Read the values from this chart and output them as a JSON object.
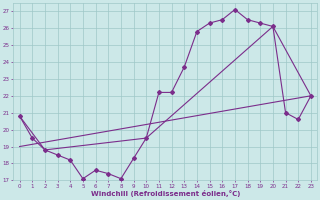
{
  "line1_x": [
    0,
    1,
    2,
    3,
    4,
    5,
    6,
    7,
    8,
    9,
    10,
    11,
    12,
    13,
    14,
    15,
    16,
    17,
    18,
    19,
    20,
    21,
    22,
    23
  ],
  "line1_y": [
    20.8,
    19.5,
    18.8,
    18.5,
    18.2,
    17.1,
    17.6,
    17.4,
    17.1,
    18.3,
    19.5,
    22.2,
    22.2,
    23.7,
    25.8,
    26.3,
    26.5,
    27.1,
    26.5,
    26.3,
    26.1,
    21.0,
    20.6,
    22.0
  ],
  "line2_x": [
    0,
    2,
    10,
    20,
    23
  ],
  "line2_y": [
    20.8,
    18.8,
    19.5,
    26.1,
    22.0
  ],
  "line3_x": [
    0,
    23
  ],
  "line3_y": [
    19.0,
    22.0
  ],
  "color": "#7b2d8b",
  "bg_color": "#cce8e8",
  "grid_color": "#9fc8c8",
  "xlabel": "Windchill (Refroidissement éolien,°C)",
  "ylim": [
    17,
    27.5
  ],
  "xlim": [
    -0.5,
    23.5
  ],
  "yticks": [
    17,
    18,
    19,
    20,
    21,
    22,
    23,
    24,
    25,
    26,
    27
  ],
  "xticks": [
    0,
    1,
    2,
    3,
    4,
    5,
    6,
    7,
    8,
    9,
    10,
    11,
    12,
    13,
    14,
    15,
    16,
    17,
    18,
    19,
    20,
    21,
    22,
    23
  ],
  "marker": "D",
  "markersize": 2.0,
  "linewidth": 0.8,
  "tick_fontsize": 4.0,
  "xlabel_fontsize": 5.0
}
